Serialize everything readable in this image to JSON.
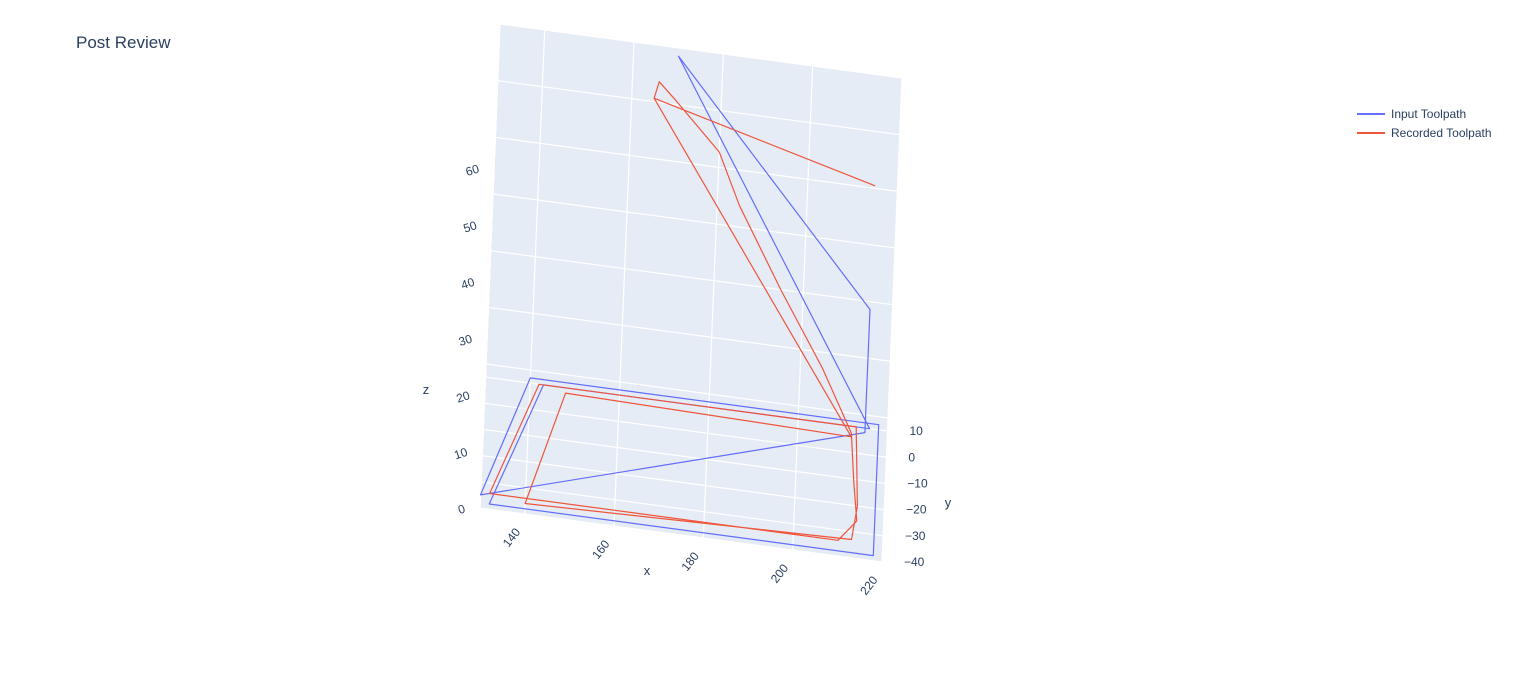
{
  "chart_data": {
    "type": "line",
    "subtype": "3d-scatter-lines",
    "title": "Post Review",
    "xlabel": "x",
    "ylabel": "y",
    "zlabel": "z",
    "xlim": [
      130,
      220
    ],
    "ylim": [
      -40,
      15
    ],
    "zlim": [
      0,
      60
    ],
    "x_ticks": [
      "140",
      "160",
      "180",
      "200",
      "220"
    ],
    "y_ticks": [
      "10",
      "0",
      "−10",
      "−20",
      "−30",
      "−40"
    ],
    "z_ticks": [
      "0",
      "10",
      "20",
      "30",
      "40",
      "50",
      "60"
    ],
    "grid": true,
    "legend_position": "top-right",
    "series": [
      {
        "name": "Input Toolpath",
        "color": "#636efa",
        "points": [
          [
            170,
            12,
            60
          ],
          [
            215,
            12,
            20
          ],
          [
            215,
            -35,
            20
          ],
          [
            130,
            -35,
            0
          ],
          [
            140,
            12,
            0
          ],
          [
            218,
            12,
            0
          ],
          [
            218,
            -38,
            0
          ],
          [
            132,
            -38,
            0
          ],
          [
            143,
            10,
            0
          ],
          [
            216,
            10,
            0
          ],
          [
            170,
            12,
            60
          ]
        ]
      },
      {
        "name": "Recorded Toolpath",
        "color": "#ef553b",
        "points": [
          [
            165,
            12,
            52
          ],
          [
            166,
            12,
            55
          ],
          [
            170,
            12,
            52
          ],
          [
            180,
            10,
            45
          ],
          [
            185,
            8,
            37
          ],
          [
            195,
            4,
            25
          ],
          [
            205,
            -2,
            15
          ],
          [
            212,
            -10,
            8
          ],
          [
            213,
            -20,
            4
          ],
          [
            214,
            -30,
            2
          ],
          [
            210,
            -34,
            0
          ],
          [
            132,
            -34,
            0
          ],
          [
            142,
            10,
            0
          ],
          [
            213,
            10,
            0
          ],
          [
            214,
            -20,
            0
          ],
          [
            213,
            -33,
            0
          ],
          [
            140,
            -36,
            0
          ],
          [
            148,
            8,
            0
          ],
          [
            212,
            6,
            0
          ],
          [
            165,
            12,
            52
          ],
          [
            215,
            -10,
            52
          ]
        ]
      }
    ]
  }
}
